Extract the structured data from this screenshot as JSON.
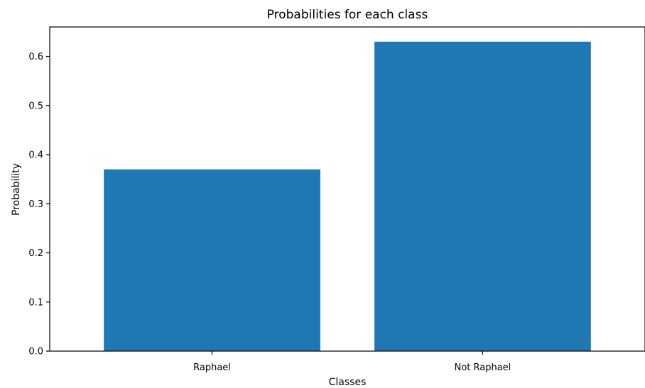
{
  "chart_data": {
    "type": "bar",
    "title": "Probabilities for each class",
    "xlabel": "Classes",
    "ylabel": "Probability",
    "categories": [
      "Raphael",
      "Not Raphael"
    ],
    "values": [
      0.37,
      0.63
    ],
    "ylim": [
      0,
      0.66
    ],
    "yticks": [
      0.0,
      0.1,
      0.2,
      0.3,
      0.4,
      0.5,
      0.6
    ],
    "ytick_labels": [
      "0.0",
      "0.1",
      "0.2",
      "0.3",
      "0.4",
      "0.5",
      "0.6"
    ],
    "grid": false,
    "bar_color": "#1f77b4"
  }
}
